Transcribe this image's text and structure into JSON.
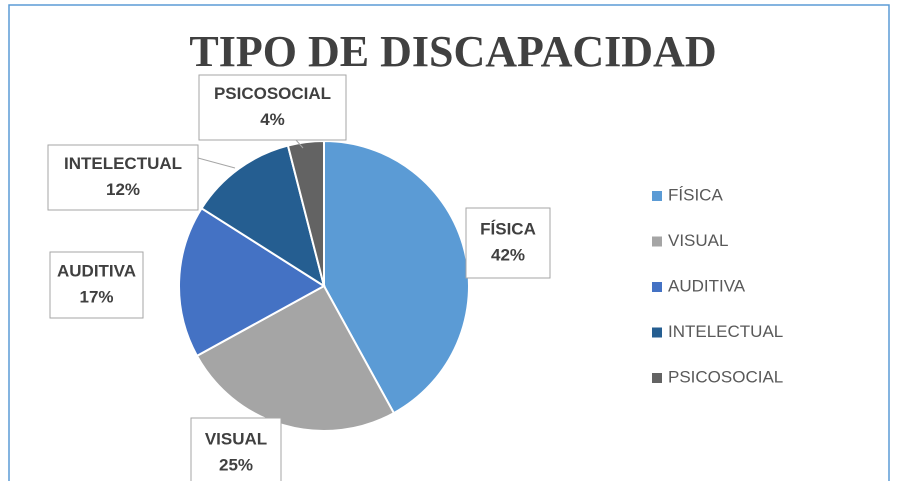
{
  "chart_data": {
    "type": "pie",
    "title": "TIPO DE DISCAPACIDAD",
    "categories": [
      "FÍSICA",
      "VISUAL",
      "AUDITIVA",
      "INTELECTUAL",
      "PSICOSOCIAL"
    ],
    "values": [
      42,
      25,
      17,
      12,
      4
    ],
    "value_labels": [
      "42%",
      "25%",
      "17%",
      "12%",
      "4%"
    ],
    "colors": [
      "#5b9bd5",
      "#a5a5a5",
      "#4472c4",
      "#255e91",
      "#636363"
    ],
    "legend": "right"
  }
}
